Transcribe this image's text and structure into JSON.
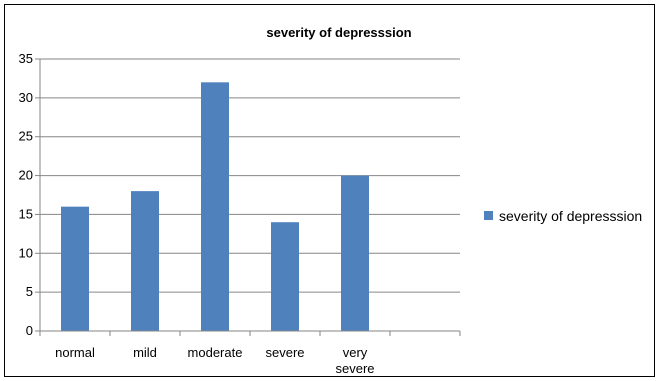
{
  "chart_data": {
    "type": "bar",
    "title": "severity of depresssion",
    "xlabel": "",
    "ylabel": "",
    "categories": [
      [
        "normal"
      ],
      [
        "mild"
      ],
      [
        "moderate"
      ],
      [
        "severe"
      ],
      [
        "very",
        "severe"
      ],
      [
        ""
      ]
    ],
    "series": [
      {
        "name": "severity of depresssion",
        "values": [
          16,
          18,
          32,
          14,
          20,
          null
        ],
        "color": "#4f81bd"
      }
    ],
    "ylim": [
      0,
      35
    ],
    "yticks": [
      "0",
      "5",
      "10",
      "15",
      "20",
      "25",
      "30",
      "35"
    ],
    "ytick_values": [
      0,
      5,
      10,
      15,
      20,
      25,
      30,
      35
    ],
    "grid": true,
    "legend_position": "right"
  }
}
